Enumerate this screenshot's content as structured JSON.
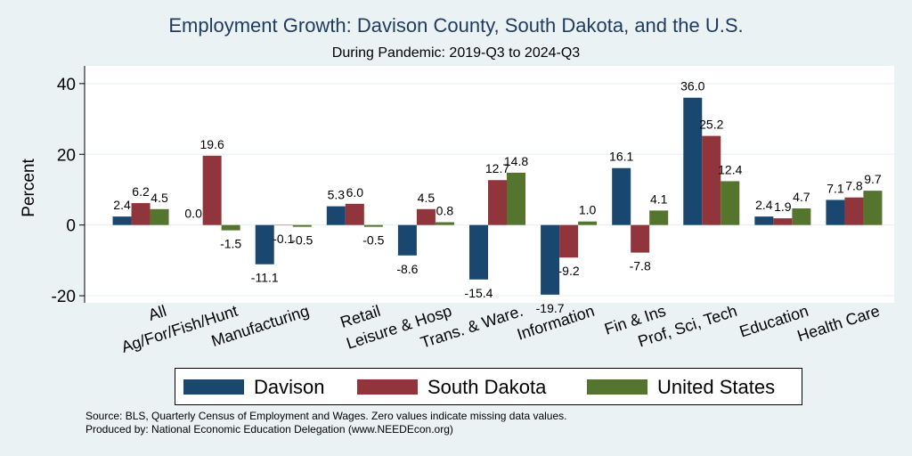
{
  "chart_data": {
    "type": "bar",
    "title": "Employment Growth: Davison County, South Dakota, and the U.S.",
    "subtitle": "During Pandemic: 2019-Q3 to 2024-Q3",
    "ylabel": "Percent",
    "xlabel": "",
    "ylim": [
      -22,
      45
    ],
    "yticks": [
      -20,
      0,
      20,
      40
    ],
    "yticklabels": [
      "-20",
      "0",
      "20",
      "40"
    ],
    "grid": true,
    "legend_position": "bottom",
    "categories": [
      "All",
      "Ag/For/Fish/Hunt",
      "Manufacturing",
      "Retail",
      "Leisure & Hosp",
      "Trans. & Ware.",
      "Information",
      "Fin & Ins",
      "Prof, Sci, Tech",
      "Education",
      "Health Care"
    ],
    "series": [
      {
        "name": "Davison",
        "color": "#1a476f",
        "values": [
          2.4,
          0.0,
          -11.1,
          5.3,
          -8.6,
          -15.4,
          -19.7,
          16.1,
          36.0,
          2.4,
          7.1
        ],
        "labels": [
          "2.4",
          "0.0",
          "-11.1",
          "5.3",
          "-8.6",
          "-15.4",
          "-19.7",
          "16.1",
          "36.0",
          "2.4",
          "7.1"
        ]
      },
      {
        "name": "South Dakota",
        "color": "#90353b",
        "values": [
          6.2,
          19.6,
          -0.1,
          6.0,
          4.5,
          12.7,
          -9.2,
          -7.8,
          25.2,
          1.9,
          7.8
        ],
        "labels": [
          "6.2",
          "19.6",
          "-0.1",
          "6.0",
          "4.5",
          "12.7",
          "-9.2",
          "-7.8",
          "25.2",
          "1.9",
          "7.8"
        ]
      },
      {
        "name": "United States",
        "color": "#55752f",
        "values": [
          4.5,
          -1.5,
          -0.5,
          -0.5,
          0.8,
          14.8,
          1.0,
          4.1,
          12.4,
          4.7,
          9.7
        ],
        "labels": [
          "4.5",
          "-1.5",
          "-0.5",
          "-0.5",
          "0.8",
          "14.8",
          "1.0",
          "4.1",
          "12.4",
          "4.7",
          "9.7"
        ]
      }
    ]
  },
  "notes": {
    "source": "Source: BLS, Quarterly Census of Employment and Wages. Zero values indicate missing data values.",
    "produced_by": "Produced by: National Economic Education Delegation (www.NEEDEcon.org)"
  }
}
